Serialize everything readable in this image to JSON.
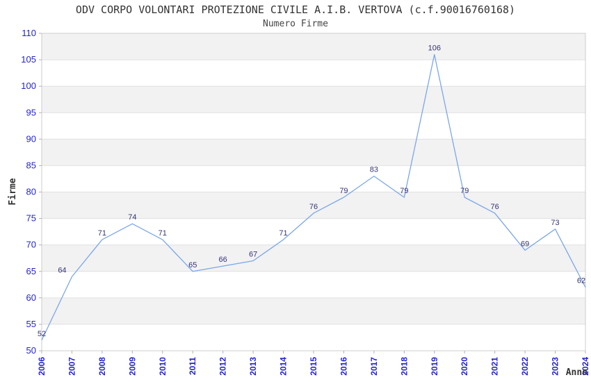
{
  "chart_data": {
    "type": "line",
    "title": "ODV CORPO VOLONTARI PROTEZIONE CIVILE A.I.B. VERTOVA (c.f.90016760168)",
    "subtitle": "Numero Firme",
    "xlabel": "Anno",
    "ylabel": "Firme",
    "x": [
      2006,
      2007,
      2008,
      2009,
      2010,
      2011,
      2012,
      2013,
      2014,
      2015,
      2016,
      2017,
      2018,
      2019,
      2020,
      2021,
      2022,
      2023,
      2024
    ],
    "values": [
      52,
      64,
      71,
      74,
      71,
      65,
      66,
      67,
      71,
      76,
      79,
      83,
      79,
      106,
      79,
      76,
      69,
      73,
      62
    ],
    "ylim": [
      50,
      110
    ],
    "yticks": [
      50,
      55,
      60,
      65,
      70,
      75,
      80,
      85,
      90,
      95,
      100,
      105,
      110
    ],
    "grid": "alternating-horizontal-bands",
    "legend": "none",
    "point_labels_shown": true,
    "colors": {
      "line": "#7aa7e8",
      "tick_label": "#2323d3",
      "point_label": "#333377",
      "band_gray": "#f2f2f2",
      "band_white": "#ffffff",
      "grid_line": "#e0e0e0",
      "plot_border": "#cccccc",
      "tick_mark": "#b0b0b0",
      "title_text": "#333333"
    }
  }
}
